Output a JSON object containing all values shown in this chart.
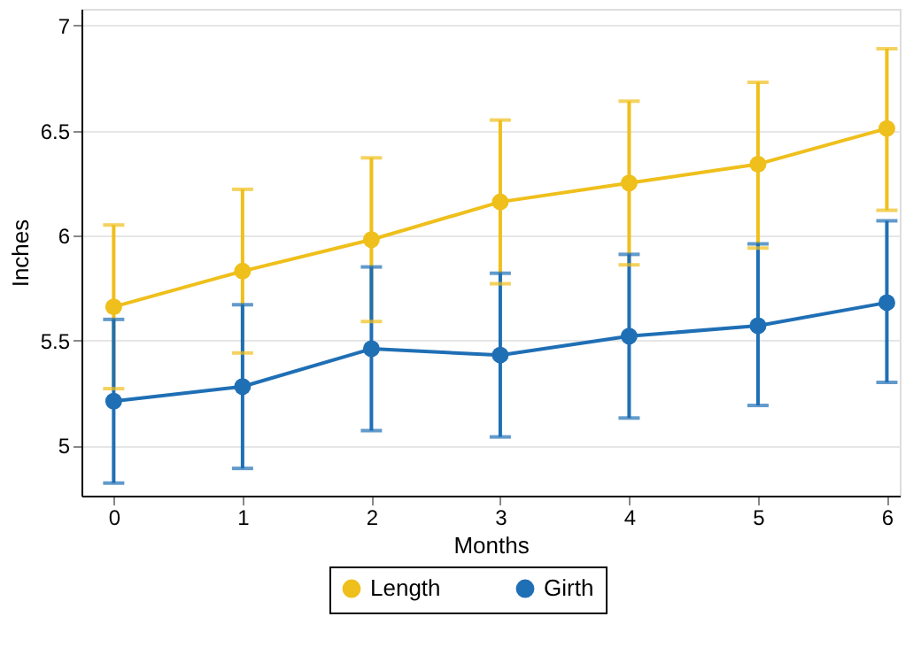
{
  "chart_data": {
    "type": "line",
    "xlabel": "Months",
    "ylabel": "Inches",
    "x": [
      0,
      1,
      2,
      3,
      4,
      5,
      6
    ],
    "series": [
      {
        "name": "Length",
        "color": "#efbf1b",
        "values": [
          5.66,
          5.83,
          5.98,
          6.16,
          6.25,
          6.34,
          6.51
        ],
        "errors": [
          [
            5.27,
            6.05
          ],
          [
            5.44,
            6.22
          ],
          [
            5.59,
            6.37
          ],
          [
            5.77,
            6.55
          ],
          [
            5.86,
            6.64
          ],
          [
            5.94,
            6.73
          ],
          [
            6.12,
            6.89
          ]
        ]
      },
      {
        "name": "Girth",
        "color": "#1f6fb5",
        "values": [
          5.21,
          5.28,
          5.46,
          5.43,
          5.52,
          5.57,
          5.68
        ],
        "errors": [
          [
            4.82,
            5.6
          ],
          [
            4.89,
            5.67
          ],
          [
            5.07,
            5.85
          ],
          [
            5.04,
            5.82
          ],
          [
            5.13,
            5.91
          ],
          [
            5.19,
            5.96
          ],
          [
            5.3,
            6.07
          ]
        ]
      }
    ],
    "xlim": [
      -0.25,
      6.1
    ],
    "xticks": [
      0,
      1,
      2,
      3,
      4,
      5,
      6
    ],
    "ylim": [
      4.76,
      7.08
    ],
    "yticks": [
      5,
      5.5,
      6,
      6.5,
      7
    ],
    "grid": "y",
    "legend": "bottom",
    "marker": "circle",
    "line_style": "solid"
  }
}
